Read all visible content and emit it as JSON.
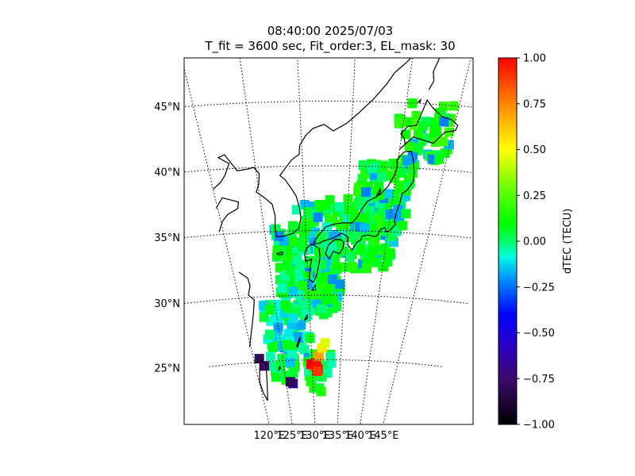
{
  "title_line1": "08:40:00 2025/07/03",
  "title_line2": "T_fit = 3600 sec, Fit_order:3, EL_mask: 30",
  "chart_data": {
    "type": "heatmap",
    "map_projection": "conic",
    "lon_range": [
      120,
      145
    ],
    "lat_range": [
      20,
      49
    ],
    "lon_ticks": [
      "120°E",
      "125°E",
      "130°E",
      "135°E",
      "140°E",
      "145°E"
    ],
    "lat_ticks": [
      "25°N",
      "30°N",
      "35°N",
      "40°N",
      "45°N"
    ],
    "lon_tick_values": [
      120,
      125,
      130,
      135,
      140,
      145
    ],
    "lat_tick_values": [
      25,
      30,
      35,
      40,
      45
    ],
    "grid": true,
    "colorbar": {
      "label": "dTEC (TECU)",
      "range": [
        -1.0,
        1.0
      ],
      "ticks": [
        "1.00",
        "0.75",
        "0.50",
        "0.25",
        "0.00",
        "−0.25",
        "−0.50",
        "−0.75",
        "−1.00"
      ],
      "tick_values": [
        1.0,
        0.75,
        0.5,
        0.25,
        0.0,
        -0.25,
        -0.5,
        -0.75,
        -1.0
      ],
      "colormap": "jet-like (black-purple-blue-cyan-green-yellow-red)"
    },
    "points_description": "dTEC observation squares over Japan and surrounding seas; most values near 0.0 to 0.15 TECU (green), some near -0.2 (cyan), a positive cluster near 130.5E 24.5N (~0.9 TECU, red/orange/yellow) and a few negative points near 121E 25N (~-0.7 to -0.8) and 126E 23N (~-0.7).",
    "point_groups": [
      {
        "name": "Japan mainland and Kyushu",
        "lon_range": [
          128,
          142
        ],
        "lat_range": [
          31,
          41
        ],
        "typical_value": 0.05
      },
      {
        "name": "Hokkaido",
        "lon_range": [
          140,
          145
        ],
        "lat_range": [
          41,
          45
        ],
        "typical_value": 0.1
      },
      {
        "name": "Nansei Islands",
        "lon_range": [
          122,
          135
        ],
        "lat_range": [
          23,
          31
        ],
        "typical_value": 0.05
      },
      {
        "name": "Positive anomaly",
        "lon": 130.5,
        "lat": 24.5,
        "value": 0.9
      },
      {
        "name": "Negative anomaly west",
        "lon": 121,
        "lat": 25,
        "value": -0.75
      },
      {
        "name": "Negative anomaly south",
        "lon": 126,
        "lat": 23,
        "value": -0.7
      }
    ]
  }
}
